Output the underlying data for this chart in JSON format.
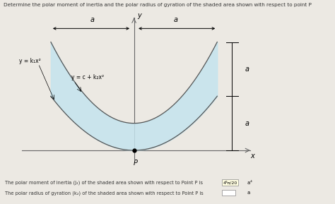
{
  "title": "Determine the polar moment of inertia and the polar radius of gyration of the shaded area shown with respect to point P",
  "bg_color": "#ece9e3",
  "shaded_color": "#c5e4ee",
  "curve1_label": "y = c + k₂x²",
  "curve2_label": "y = k₁x²",
  "x_label": "x",
  "y_label": "y",
  "P_label": "P",
  "a_label": "a",
  "line1": "The polar moment of inertia (J₂) of the shaded area shown with respect to Point P is",
  "line1_box": "4⁹π/20",
  "line1_suffix": " a⁴",
  "line2": "The polar radius of gyration (k₂) of the shaded area shown with respect to Point P is",
  "line2_box": "",
  "line2_suffix": " a"
}
